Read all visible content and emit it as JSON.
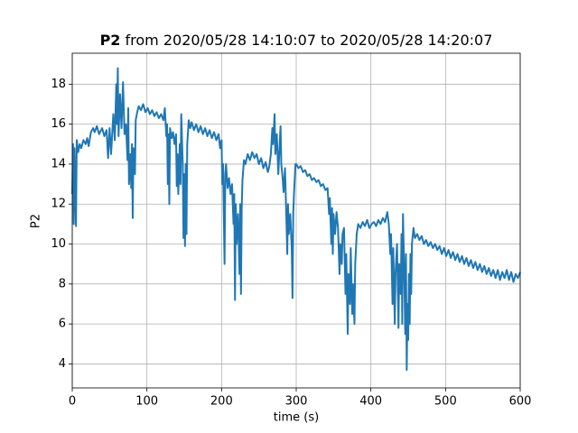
{
  "chart_data": {
    "type": "line",
    "title": {
      "name": "P2",
      "text": "from 2020/05/28 14:10:07 to 2020/05/28 14:20:07"
    },
    "xlabel": "time (s)",
    "ylabel": "P2",
    "color": "#1f77b4",
    "grid": true,
    "xlim": [
      0,
      600
    ],
    "xticks": [
      0,
      100,
      200,
      300,
      400,
      500,
      600
    ],
    "ylim": [
      2.8,
      19.55
    ],
    "yticks": [
      4,
      6,
      8,
      10,
      12,
      14,
      16,
      18
    ],
    "x": [
      0,
      1,
      2,
      3,
      5,
      6,
      8,
      10,
      12,
      15,
      18,
      20,
      22,
      25,
      28,
      30,
      33,
      36,
      40,
      43,
      46,
      48,
      50,
      52,
      55,
      57,
      59,
      60,
      61,
      62,
      64,
      66,
      68,
      70,
      72,
      74,
      75,
      76,
      78,
      79,
      80,
      81,
      82,
      84,
      85,
      87,
      89,
      92,
      95,
      98,
      101,
      104,
      107,
      110,
      113,
      116,
      119,
      122,
      124,
      126,
      127,
      128,
      129,
      130,
      131,
      133,
      135,
      137,
      139,
      140,
      141,
      142,
      144,
      145,
      146,
      148,
      149,
      150,
      151,
      152,
      153,
      154,
      156,
      158,
      160,
      163,
      166,
      169,
      172,
      175,
      178,
      181,
      184,
      187,
      190,
      193,
      196,
      198,
      200,
      201,
      202,
      204,
      205,
      206,
      208,
      210,
      212,
      214,
      216,
      217,
      218,
      219,
      220,
      222,
      224,
      225,
      226,
      227,
      228,
      230,
      232,
      235,
      238,
      241,
      244,
      247,
      250,
      253,
      256,
      259,
      262,
      264,
      266,
      268,
      269,
      271,
      272,
      274,
      276,
      277,
      279,
      280,
      282,
      283,
      285,
      287,
      288,
      289,
      290,
      292,
      294,
      295,
      296,
      297,
      299,
      300,
      303,
      306,
      309,
      312,
      315,
      318,
      321,
      324,
      327,
      330,
      333,
      336,
      339,
      342,
      344,
      345,
      347,
      348,
      349,
      350,
      352,
      354,
      356,
      358,
      359,
      361,
      362,
      364,
      366,
      367,
      369,
      370,
      372,
      373,
      375,
      376,
      378,
      379,
      381,
      383,
      386,
      389,
      392,
      395,
      398,
      401,
      404,
      407,
      410,
      413,
      416,
      419,
      422,
      424,
      426,
      427,
      429,
      430,
      432,
      433,
      435,
      437,
      438,
      440,
      441,
      442,
      443,
      445,
      446,
      447,
      448,
      449,
      450,
      451,
      452,
      453,
      454,
      455,
      457,
      459,
      462,
      465,
      468,
      471,
      474,
      477,
      480,
      483,
      486,
      489,
      492,
      495,
      498,
      501,
      504,
      507,
      510,
      513,
      516,
      519,
      522,
      525,
      528,
      531,
      534,
      537,
      540,
      543,
      546,
      549,
      552,
      555,
      558,
      561,
      564,
      567,
      570,
      573,
      576,
      579,
      582,
      585,
      588,
      591,
      594,
      597,
      600
    ],
    "values": [
      12.5,
      15.0,
      11.0,
      14.8,
      10.9,
      15.2,
      14.6,
      15.0,
      14.8,
      15.2,
      15.0,
      15.3,
      14.9,
      15.6,
      15.8,
      15.6,
      15.9,
      15.5,
      15.8,
      15.4,
      15.7,
      14.3,
      15.8,
      14.5,
      16.5,
      15.2,
      18.0,
      16.0,
      18.8,
      15.4,
      17.5,
      15.8,
      18.1,
      15.5,
      16.0,
      14.2,
      16.8,
      13.0,
      14.5,
      12.8,
      15.0,
      11.3,
      14.8,
      13.5,
      16.2,
      16.6,
      16.9,
      16.7,
      17.0,
      16.6,
      16.8,
      16.5,
      16.7,
      16.4,
      16.6,
      16.3,
      16.5,
      16.2,
      16.8,
      15.4,
      16.0,
      13.0,
      15.5,
      12.0,
      15.8,
      15.3,
      15.6,
      15.0,
      15.5,
      12.9,
      14.5,
      12.5,
      15.0,
      13.0,
      16.5,
      14.0,
      10.3,
      13.5,
      9.9,
      14.0,
      10.5,
      15.0,
      16.2,
      15.8,
      16.1,
      15.7,
      16.0,
      15.6,
      15.9,
      15.5,
      15.8,
      15.4,
      15.7,
      15.3,
      15.6,
      15.2,
      15.5,
      14.8,
      15.2,
      13.0,
      14.0,
      9.0,
      13.5,
      14.0,
      12.8,
      13.3,
      12.5,
      13.0,
      11.0,
      12.5,
      7.2,
      12.0,
      10.0,
      11.5,
      8.5,
      12.0,
      7.5,
      11.8,
      13.2,
      14.2,
      14.0,
      14.5,
      14.2,
      14.6,
      14.3,
      14.5,
      14.0,
      14.3,
      13.8,
      14.1,
      13.6,
      13.9,
      14.5,
      15.8,
      15.0,
      16.5,
      14.5,
      15.5,
      13.5,
      14.3,
      15.9,
      14.0,
      13.2,
      12.6,
      13.8,
      11.0,
      9.5,
      12.0,
      10.5,
      11.5,
      9.8,
      7.3,
      11.5,
      12.5,
      14.0,
      14.0,
      13.8,
      13.9,
      13.6,
      13.7,
      13.4,
      13.5,
      13.2,
      13.3,
      13.1,
      13.2,
      12.9,
      13.0,
      12.7,
      12.8,
      11.5,
      12.3,
      10.0,
      11.8,
      9.5,
      11.5,
      10.5,
      11.6,
      10.8,
      8.5,
      10.0,
      9.0,
      10.5,
      10.8,
      7.5,
      9.5,
      5.5,
      8.5,
      7.0,
      9.8,
      6.5,
      8.0,
      6.0,
      9.0,
      10.5,
      11.0,
      10.8,
      11.1,
      10.9,
      11.2,
      10.8,
      11.0,
      11.1,
      10.9,
      11.2,
      11.0,
      11.3,
      11.1,
      11.6,
      11.0,
      9.5,
      10.5,
      7.0,
      9.8,
      6.0,
      8.5,
      10.0,
      5.8,
      9.0,
      7.5,
      10.5,
      6.0,
      11.5,
      8.0,
      5.5,
      9.5,
      3.7,
      7.0,
      5.2,
      8.5,
      6.0,
      9.5,
      7.5,
      10.0,
      10.8,
      10.3,
      10.5,
      10.2,
      10.4,
      10.0,
      10.2,
      9.9,
      10.1,
      9.8,
      10.0,
      9.7,
      9.9,
      9.5,
      9.8,
      9.4,
      9.7,
      9.3,
      9.6,
      9.2,
      9.5,
      9.1,
      9.4,
      9.0,
      9.3,
      8.9,
      9.2,
      8.8,
      9.1,
      8.7,
      9.0,
      8.6,
      8.9,
      8.5,
      8.8,
      8.4,
      8.7,
      8.3,
      8.7,
      8.2,
      8.6,
      8.3,
      8.7,
      8.2,
      8.6,
      8.1,
      8.5,
      8.3,
      8.6
    ]
  }
}
